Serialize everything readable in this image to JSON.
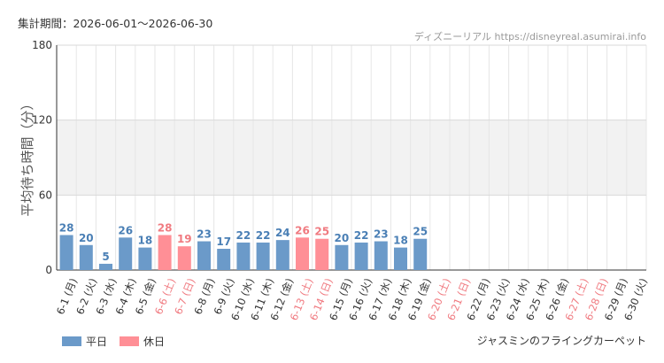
{
  "header": {
    "period_label": "集計期間：2026-06-01～2026-06-30",
    "site_credit": "ディズニーリアル https://disneyreal.asumirai.info"
  },
  "colors": {
    "weekday": "#6b9ac9",
    "holiday": "#ff8f96",
    "weekday_text": "#4a7fb5",
    "holiday_text": "#f07a80",
    "band": "#f2f2f2",
    "grid": "#e6e6e6"
  },
  "legend": {
    "weekday_label": "平日",
    "holiday_label": "休日"
  },
  "attraction_name": "ジャスミンのフライングカーペット",
  "chart_data": {
    "type": "bar",
    "ylabel": "平均待ち時間（分）",
    "ylim": [
      0,
      180
    ],
    "yticks": [
      0,
      60,
      120,
      180
    ],
    "grid": true,
    "legend_position": "bottom-left",
    "categories": [
      "6-1 (月)",
      "6-2 (火)",
      "6-3 (水)",
      "6-4 (木)",
      "6-5 (金)",
      "6-6 (土)",
      "6-7 (日)",
      "6-8 (月)",
      "6-9 (火)",
      "6-10 (水)",
      "6-11 (木)",
      "6-12 (金)",
      "6-13 (土)",
      "6-14 (日)",
      "6-15 (月)",
      "6-16 (火)",
      "6-17 (水)",
      "6-18 (木)",
      "6-19 (金)",
      "6-20 (土)",
      "6-21 (日)",
      "6-22 (月)",
      "6-23 (火)",
      "6-24 (水)",
      "6-25 (木)",
      "6-26 (金)",
      "6-27 (土)",
      "6-28 (日)",
      "6-29 (月)",
      "6-30 (火)"
    ],
    "values": [
      28,
      20,
      5,
      26,
      18,
      28,
      19,
      23,
      17,
      22,
      22,
      24,
      26,
      25,
      20,
      22,
      23,
      18,
      25,
      null,
      null,
      null,
      null,
      null,
      null,
      null,
      null,
      null,
      null,
      null
    ],
    "day_type": [
      "weekday",
      "weekday",
      "weekday",
      "weekday",
      "weekday",
      "holiday",
      "holiday",
      "weekday",
      "weekday",
      "weekday",
      "weekday",
      "weekday",
      "holiday",
      "holiday",
      "weekday",
      "weekday",
      "weekday",
      "weekday",
      "weekday",
      "holiday",
      "holiday",
      "weekday",
      "weekday",
      "weekday",
      "weekday",
      "weekday",
      "holiday",
      "holiday",
      "weekday",
      "weekday"
    ]
  }
}
